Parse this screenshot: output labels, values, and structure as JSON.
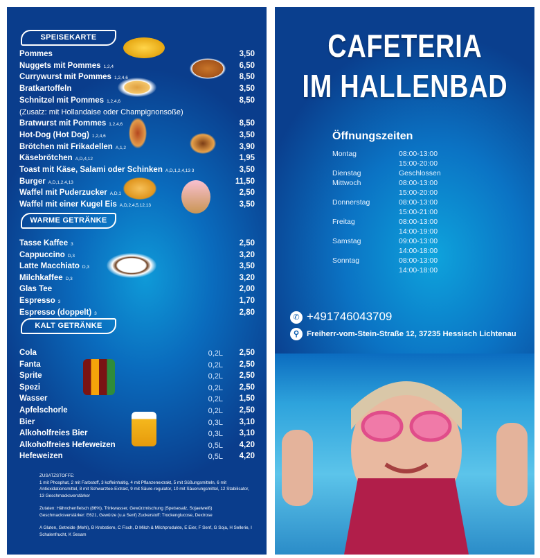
{
  "speisekarte": {
    "header": "SPEISEKARTE",
    "items": [
      {
        "name": "Pommes",
        "allergens": "",
        "price": "3,50"
      },
      {
        "name": "Nuggets mit Pommes",
        "allergens": "1,2,4",
        "price": "6,50"
      },
      {
        "name": "Currywurst mit Pommes",
        "allergens": "1,2,4,6",
        "price": "8,50"
      },
      {
        "name": "Bratkartoffeln",
        "allergens": "",
        "price": "3,50"
      },
      {
        "name": "Schnitzel mit Pommes",
        "allergens": "1,2,4,6",
        "price": "8,50"
      },
      {
        "name": "Bratwurst mit Pommes",
        "allergens": "1,2,4,6",
        "price": "8,50"
      },
      {
        "name": "Hot-Dog (Hot Dog)",
        "allergens": "1,2,4,6",
        "price": "3,50"
      },
      {
        "name": "Brötchen mit Frikadellen",
        "allergens": "A,1,2",
        "price": "3,90"
      },
      {
        "name": "Käsebrötchen",
        "allergens": "A,D,4,12",
        "price": "1,95"
      },
      {
        "name": "Toast mit Käse, Salami oder Schinken",
        "allergens": "A,D,1,2,4,13 3",
        "price": "3,50"
      },
      {
        "name": "Burger",
        "allergens": "A,D,1,2,4,13",
        "price": "11,50"
      },
      {
        "name": "Waffel mit Puderzucker",
        "allergens": "A,D,1",
        "price": "2,50"
      },
      {
        "name": "Waffel mit einer Kugel Eis",
        "allergens": "A,D,2,4,5,12,13",
        "price": "3,50"
      }
    ],
    "note": "(Zusatz: mit Hollandaise oder Champignonsoße)"
  },
  "warme": {
    "header": "WARME GETRÄNKE",
    "items": [
      {
        "name": "Tasse Kaffee",
        "allergens": "3",
        "price": "2,50"
      },
      {
        "name": "Cappuccino",
        "allergens": "D,3",
        "price": "3,20"
      },
      {
        "name": "Latte Macchiato",
        "allergens": "D,3",
        "price": "3,50"
      },
      {
        "name": "Milchkaffee",
        "allergens": "D,3",
        "price": "3,20"
      },
      {
        "name": "Glas Tee",
        "allergens": "",
        "price": "2,00"
      },
      {
        "name": "Espresso",
        "allergens": "3",
        "price": "1,70"
      },
      {
        "name": "Espresso (doppelt)",
        "allergens": "3",
        "price": "2,80"
      }
    ]
  },
  "kalt": {
    "header": "KALT GETRÄNKE",
    "items": [
      {
        "name": "Cola",
        "size": "0,2L",
        "price": "2,50"
      },
      {
        "name": "Fanta",
        "size": "0,2L",
        "price": "2,50"
      },
      {
        "name": "Sprite",
        "size": "0,2L",
        "price": "2,50"
      },
      {
        "name": "Spezi",
        "size": "0,2L",
        "price": "2,50"
      },
      {
        "name": "Wasser",
        "size": "0,2L",
        "price": "1,50"
      },
      {
        "name": "Apfelschorle",
        "size": "0,2L",
        "price": "2,50"
      },
      {
        "name": "Bier",
        "size": "0,3L",
        "price": "3,10"
      },
      {
        "name": "Alkoholfreies Bier",
        "size": "0,3L",
        "price": "3,10"
      },
      {
        "name": "Alkoholfreies Hefeweizen",
        "size": "0,5L",
        "price": "4,20"
      },
      {
        "name": "Hefeweizen",
        "size": "0,5L",
        "price": "4,20"
      }
    ]
  },
  "footnotes": {
    "title": "ZUSATZSTOFFE:",
    "additives": "1 mit Phosphat, 2 mit Farbstoff, 3 koffeinhaltig, 4 mit Pflanzenextrakt, 5 mit Süßungsmitteln, 6 mit Antioxidationsmittel, 8 mit Schwarztee-Extrakt, 9 mit Säure-regulator, 10 mit Säuerungsmittel, 12 Stabilisator, 13 Geschmacksverstärker",
    "ingredients": "Zutaten: Hähnchenfleisch (86%), Trinkwasser, Gewürzmischung (Speisesalz, Sojaeiweiß) Geschmacksverstärker: E621, Gewürze (u.a Senf) Zuckerstoff: Trockenglucose, Dextrose",
    "allergens": "A Gluten, Getreide (Mehl), B Krebstiere, C Fisch, D Milch & Milchprodukte, E Eier, F Senf, G Soja, H Sellerie, I Schalenfrucht, K Sesam"
  },
  "right": {
    "title1": "CAFETERIA",
    "title2": "IM HALLENBAD",
    "hours_title": "Öffnungszeiten",
    "hours": [
      {
        "day": "Montag",
        "time": "08:00-13:00"
      },
      {
        "day": "",
        "time": "15:00-20:00"
      },
      {
        "day": "Dienstag",
        "time": "Geschlossen"
      },
      {
        "day": "Mittwoch",
        "time": "08:00-13:00"
      },
      {
        "day": "",
        "time": "15:00-20:00"
      },
      {
        "day": "Donnerstag",
        "time": "08:00-13:00"
      },
      {
        "day": "",
        "time": "15:00-21:00"
      },
      {
        "day": "Freitag",
        "time": "08:00-13:00"
      },
      {
        "day": "",
        "time": "14:00-19:00"
      },
      {
        "day": "Samstag",
        "time": "09:00-13:00"
      },
      {
        "day": "",
        "time": "14:00-18:00"
      },
      {
        "day": "Sonntag",
        "time": "08:00-13:00"
      },
      {
        "day": "",
        "time": "14:00-18:00"
      }
    ],
    "phone": "+491746043709",
    "address": "Freiherr-vom-Stein-Straße 12, 37235 Hessisch Lichtenau"
  }
}
